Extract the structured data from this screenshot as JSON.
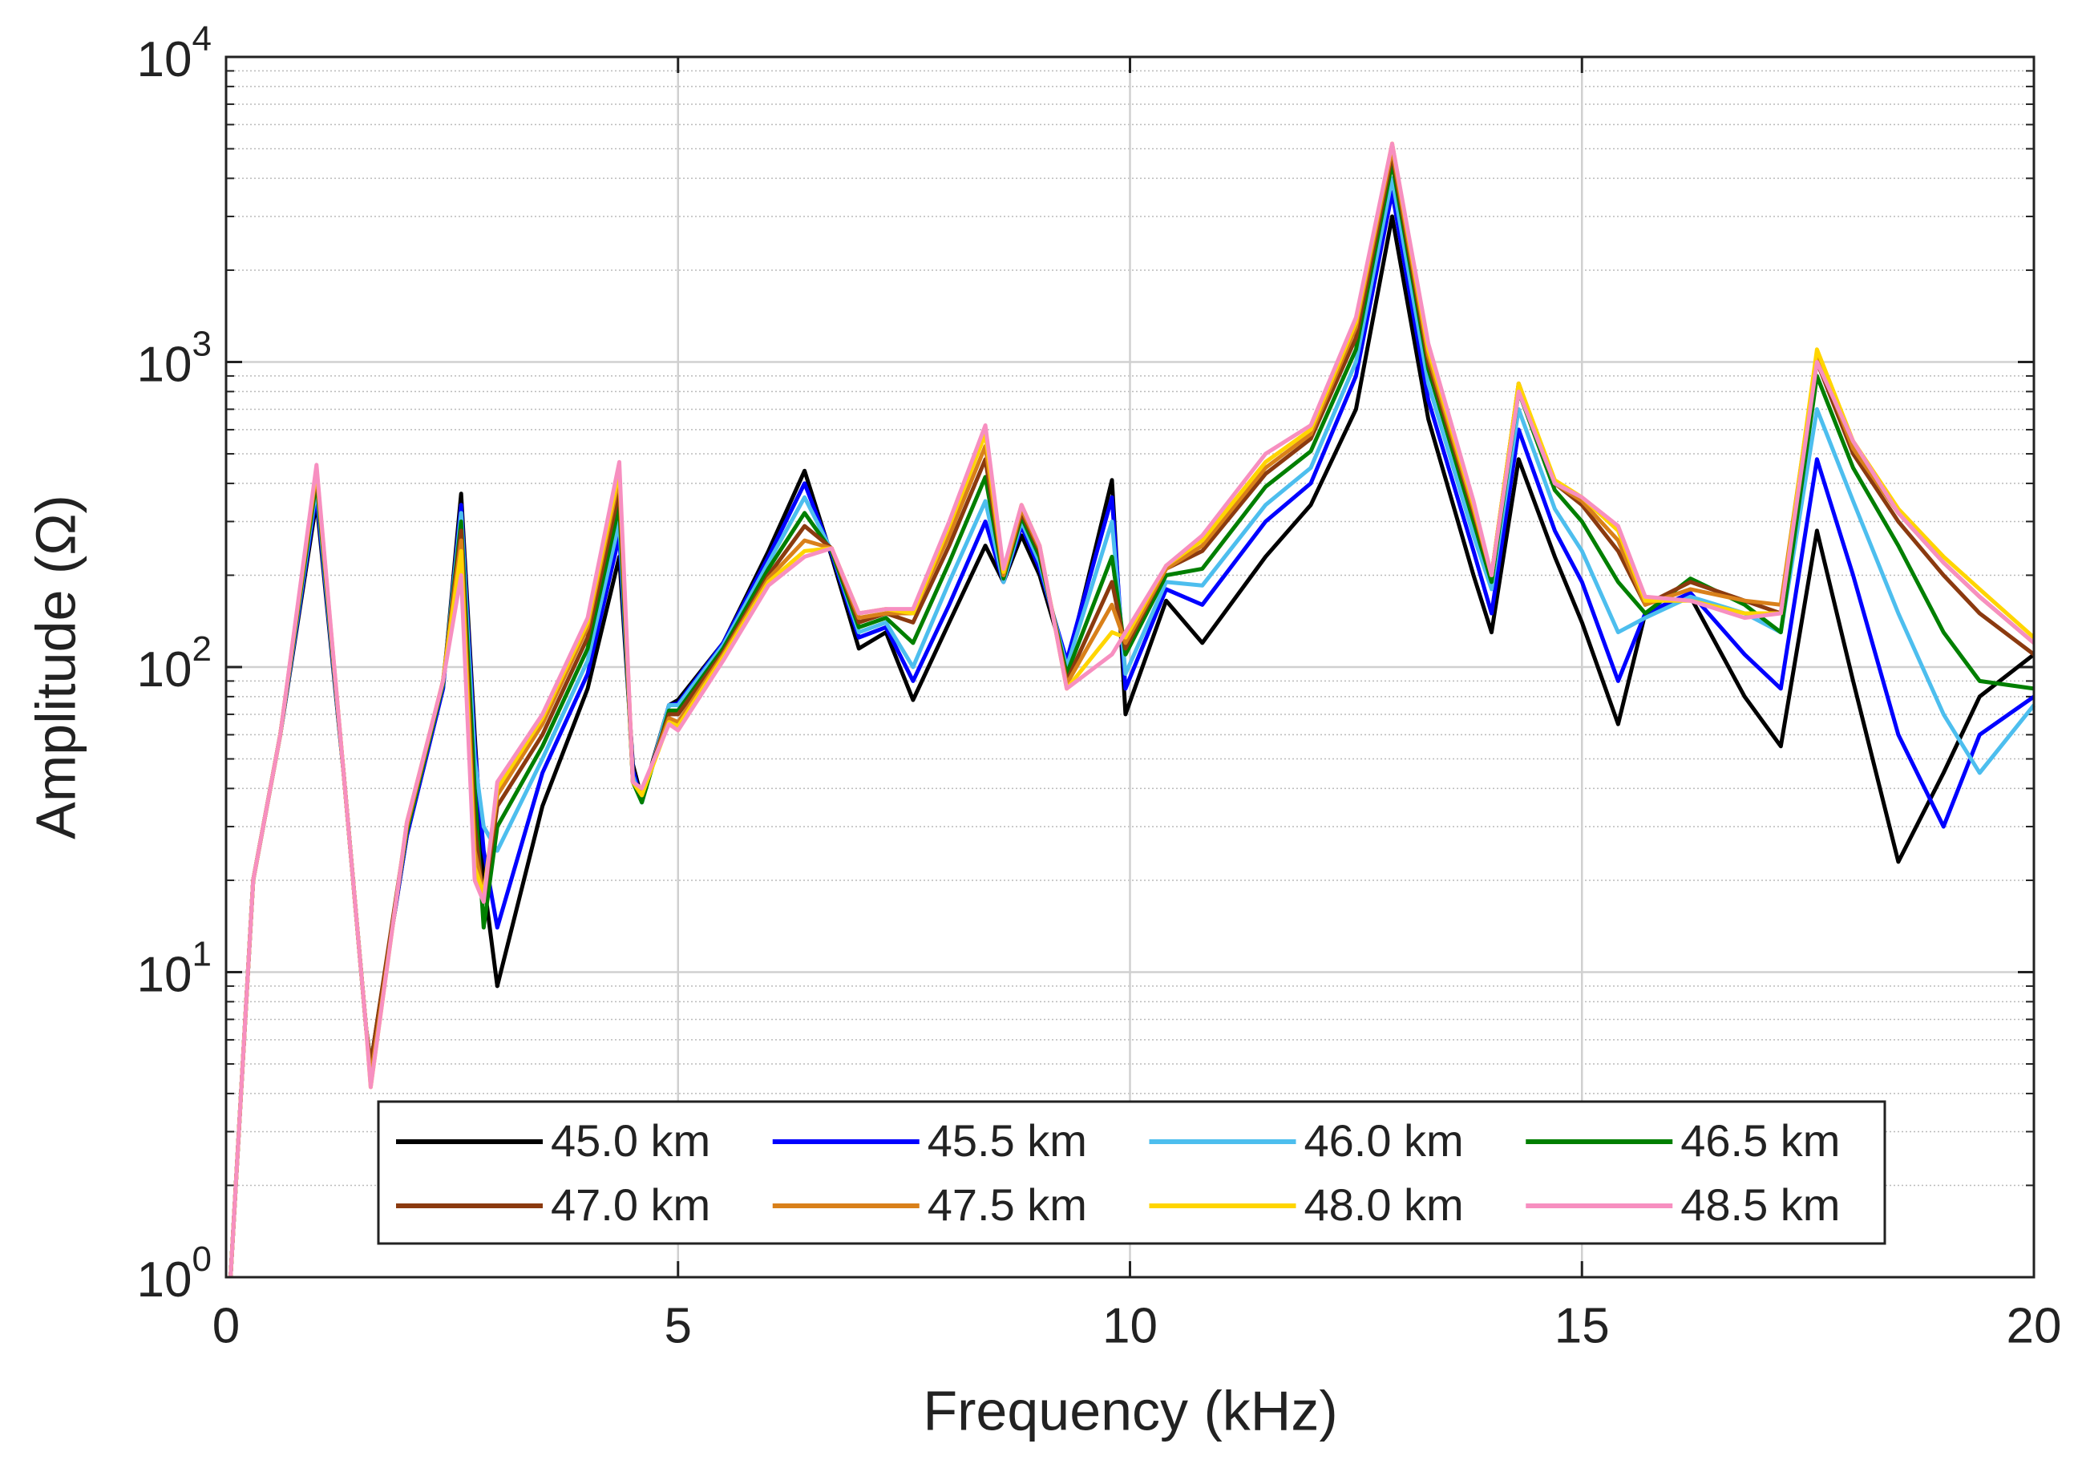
{
  "chart_data": {
    "type": "line",
    "xlabel": "Frequency (kHz)",
    "ylabel": "Amplitude (Ω)",
    "log_y": true,
    "grid": true,
    "minor_grid": true,
    "legend_position": "bottom",
    "xlim": [
      0,
      20
    ],
    "xticks": [
      0,
      5,
      10,
      15,
      20
    ],
    "ylim": [
      1,
      10000
    ],
    "yticks": [
      {
        "value": 1,
        "label": "10^0"
      },
      {
        "value": 10,
        "label": "10^1"
      },
      {
        "value": 100,
        "label": "10^2"
      },
      {
        "value": 1000,
        "label": "10^3"
      },
      {
        "value": 10000,
        "label": "10^4"
      }
    ],
    "x": [
      0.05,
      0.3,
      0.6,
      1.0,
      1.3,
      1.55,
      1.6,
      2.0,
      2.4,
      2.6,
      2.75,
      2.85,
      3.0,
      3.5,
      4.0,
      4.35,
      4.5,
      4.6,
      4.9,
      5.0,
      5.5,
      6.0,
      6.4,
      6.7,
      7.0,
      7.3,
      7.6,
      8.0,
      8.4,
      8.6,
      8.8,
      9.0,
      9.3,
      9.8,
      9.95,
      10.4,
      10.8,
      11.5,
      12.0,
      12.5,
      12.9,
      13.3,
      13.8,
      14.0,
      14.3,
      14.7,
      15.0,
      15.4,
      15.7,
      16.2,
      16.8,
      17.2,
      17.6,
      18.0,
      18.5,
      19.0,
      19.4,
      20.0
    ],
    "series": [
      {
        "name": "45.0 km",
        "color": "#000000",
        "values": [
          1,
          20,
          60,
          350,
          45,
          6.5,
          5,
          28,
          85,
          370,
          60,
          20,
          9,
          35,
          85,
          230,
          48,
          37,
          75,
          78,
          120,
          240,
          440,
          230,
          115,
          130,
          78,
          140,
          250,
          190,
          270,
          200,
          100,
          410,
          70,
          165,
          120,
          230,
          340,
          700,
          3000,
          650,
          200,
          130,
          480,
          230,
          140,
          65,
          150,
          170,
          80,
          55,
          280,
          90,
          23,
          45,
          80,
          110
        ]
      },
      {
        "name": "45.5 km",
        "color": "#0000ff",
        "values": [
          1,
          20,
          60,
          370,
          45,
          6.5,
          5,
          28,
          85,
          340,
          55,
          25,
          14,
          45,
          95,
          270,
          46,
          36,
          75,
          76,
          120,
          230,
          400,
          235,
          125,
          135,
          90,
          160,
          300,
          190,
          290,
          210,
          105,
          360,
          85,
          180,
          160,
          300,
          400,
          900,
          3600,
          750,
          240,
          150,
          600,
          280,
          190,
          90,
          150,
          175,
          110,
          85,
          480,
          200,
          60,
          30,
          60,
          80
        ]
      },
      {
        "name": "46.0 km",
        "color": "#4dbeee",
        "values": [
          1,
          20,
          60,
          390,
          45,
          6.5,
          5,
          29,
          88,
          320,
          50,
          30,
          25,
          50,
          105,
          300,
          44,
          36,
          75,
          75,
          118,
          220,
          360,
          240,
          130,
          140,
          100,
          190,
          350,
          190,
          300,
          220,
          100,
          300,
          95,
          190,
          185,
          340,
          450,
          1000,
          4000,
          850,
          270,
          180,
          700,
          330,
          240,
          130,
          145,
          170,
          150,
          130,
          700,
          350,
          150,
          70,
          45,
          75
        ]
      },
      {
        "name": "46.5 km",
        "color": "#007f00",
        "values": [
          1,
          20,
          60,
          410,
          45,
          6.5,
          5,
          29,
          88,
          300,
          40,
          14,
          30,
          55,
          115,
          340,
          42,
          36,
          72,
          72,
          115,
          210,
          320,
          240,
          135,
          145,
          120,
          220,
          420,
          195,
          310,
          230,
          95,
          230,
          110,
          200,
          210,
          390,
          510,
          1100,
          4500,
          950,
          300,
          190,
          800,
          380,
          300,
          190,
          150,
          195,
          160,
          130,
          900,
          450,
          250,
          130,
          90,
          85
        ]
      },
      {
        "name": "47.0 km",
        "color": "#8b3a0f",
        "values": [
          1,
          20,
          60,
          430,
          45,
          6.5,
          5,
          30,
          90,
          280,
          30,
          17,
          35,
          60,
          125,
          380,
          42,
          38,
          70,
          70,
          112,
          200,
          290,
          245,
          140,
          150,
          140,
          250,
          480,
          200,
          320,
          240,
          90,
          190,
          115,
          210,
          240,
          430,
          560,
          1200,
          4800,
          1000,
          320,
          200,
          850,
          400,
          340,
          240,
          160,
          190,
          165,
          150,
          1000,
          500,
          300,
          200,
          150,
          110
        ]
      },
      {
        "name": "47.5 km",
        "color": "#d9801a",
        "values": [
          1,
          20,
          60,
          440,
          45,
          6.5,
          4.5,
          30,
          90,
          260,
          25,
          18,
          38,
          65,
          135,
          420,
          42,
          38,
          68,
          66,
          110,
          195,
          260,
          245,
          145,
          150,
          150,
          270,
          530,
          200,
          330,
          245,
          88,
          160,
          120,
          210,
          250,
          450,
          580,
          1300,
          5000,
          1050,
          330,
          200,
          850,
          400,
          350,
          260,
          160,
          180,
          165,
          160,
          1050,
          520,
          320,
          220,
          170,
          120
        ]
      },
      {
        "name": "48.0 km",
        "color": "#ffd500",
        "values": [
          1,
          20,
          60,
          450,
          45,
          6.5,
          4.2,
          31,
          90,
          240,
          22,
          18,
          40,
          68,
          140,
          440,
          42,
          38,
          66,
          64,
          108,
          190,
          240,
          245,
          150,
          155,
          150,
          290,
          580,
          205,
          340,
          250,
          85,
          130,
          125,
          215,
          260,
          470,
          600,
          1350,
          5200,
          1100,
          340,
          200,
          850,
          410,
          360,
          280,
          165,
          165,
          150,
          150,
          1100,
          550,
          330,
          230,
          180,
          125
        ]
      },
      {
        "name": "48.5 km",
        "color": "#f78fc0",
        "values": [
          1,
          20,
          60,
          460,
          45,
          6.5,
          4.2,
          31,
          90,
          200,
          20,
          17,
          42,
          70,
          145,
          470,
          42,
          40,
          65,
          62,
          105,
          185,
          230,
          245,
          150,
          155,
          155,
          300,
          620,
          210,
          340,
          250,
          85,
          110,
          130,
          215,
          270,
          500,
          620,
          1400,
          5200,
          1150,
          350,
          200,
          800,
          400,
          360,
          290,
          170,
          165,
          145,
          150,
          1000,
          550,
          320,
          220,
          170,
          120
        ]
      }
    ]
  }
}
